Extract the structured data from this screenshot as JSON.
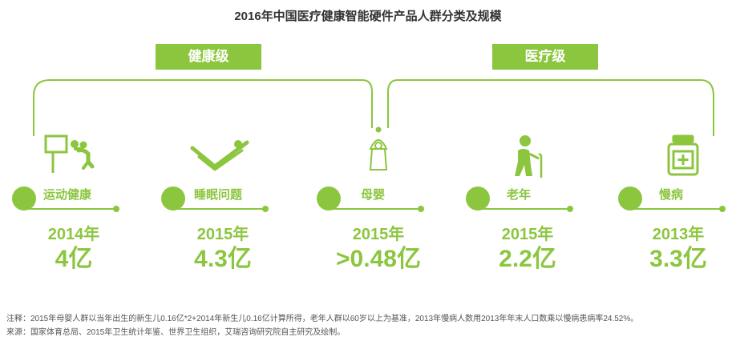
{
  "title": "2016年中国医疗健康智能硬件产品人群分类及规模",
  "groups": {
    "health": "健康级",
    "medical": "医疗级"
  },
  "chart_data": {
    "type": "table",
    "title": "2016年中国医疗健康智能硬件产品人群分类及规模",
    "categories": [
      "运动健康",
      "睡眠问题",
      "母婴",
      "老年",
      "慢病"
    ],
    "years": [
      "2014年",
      "2015年",
      "2015年",
      "2015年",
      "2013年"
    ],
    "value_labels": [
      "4亿",
      "4.3亿",
      ">0.48亿",
      "2.2亿",
      "3.3亿"
    ],
    "values": [
      4,
      4.3,
      0.48,
      2.2,
      3.3
    ],
    "unit": "亿",
    "group_members": {
      "健康级": [
        "运动健康",
        "睡眠问题",
        "母婴"
      ],
      "医疗级": [
        "母婴",
        "老年",
        "慢病"
      ]
    }
  },
  "icons": [
    "basketball-player-icon",
    "sleep-bed-icon",
    "baby-icon",
    "elderly-cane-icon",
    "medicine-bottle-icon"
  ],
  "colors": {
    "accent": "#8cc63f",
    "title_text": "#333333",
    "note_text": "#555555"
  },
  "notes": {
    "note": "注释：2015年母婴人群以当年出生的新生儿0.16亿*2+2014年新生儿0.16亿计算所得，老年人群以60岁以上为基准，2013年慢病人数用2013年年末人口数乘以慢病患病率24.52%。",
    "source": "来源：国家体育总局、2015年卫生统计年鉴、世界卫生组织，艾瑞咨询研究院自主研究及绘制。"
  }
}
